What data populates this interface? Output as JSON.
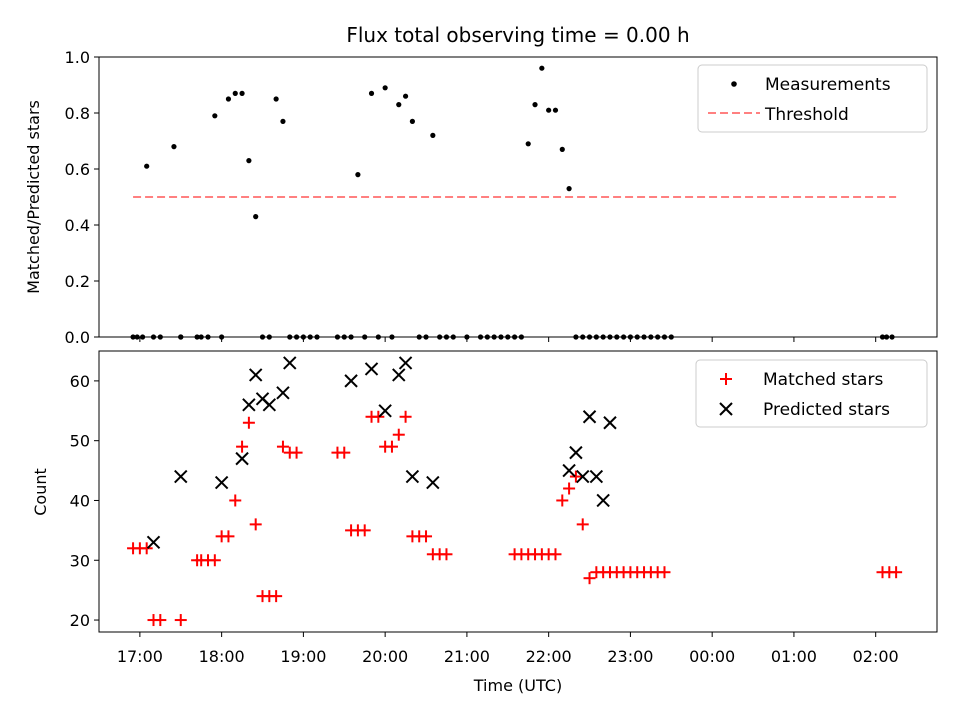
{
  "title": "Flux total observing time = 0.00 h",
  "colors": {
    "measurement": "#000000",
    "threshold": "#ff8080",
    "matched": "#ff0000",
    "predicted": "#000000"
  },
  "chart_data": [
    {
      "type": "scatter",
      "ylabel": "Matched/Predicted stars",
      "xlim": [
        "16:30",
        "02:45"
      ],
      "ylim": [
        0,
        1.0
      ],
      "yticks": [
        "0.0",
        "0.2",
        "0.4",
        "0.6",
        "0.8",
        "1.0"
      ],
      "legend": {
        "position": "top-right",
        "entries": [
          "Measurements",
          "Threshold"
        ]
      },
      "series": [
        {
          "name": "Measurements",
          "x": [
            "16:55",
            "16:58",
            "17:02",
            "17:05",
            "17:10",
            "17:15",
            "17:25",
            "17:30",
            "17:30",
            "17:42",
            "17:45",
            "17:50",
            "17:55",
            "18:00",
            "18:05",
            "18:10",
            "18:15",
            "18:20",
            "18:25",
            "18:30",
            "18:35",
            "18:40",
            "18:45",
            "18:50",
            "18:55",
            "19:00",
            "19:05",
            "19:10",
            "19:25",
            "19:30",
            "19:35",
            "19:40",
            "19:45",
            "19:50",
            "19:55",
            "20:00",
            "20:05",
            "20:10",
            "20:15",
            "20:20",
            "20:25",
            "20:30",
            "20:35",
            "20:40",
            "20:45",
            "20:50",
            "21:00",
            "21:10",
            "21:15",
            "21:20",
            "21:25",
            "21:30",
            "21:35",
            "21:40",
            "21:45",
            "21:50",
            "21:55",
            "22:00",
            "22:05",
            "22:10",
            "22:15",
            "22:20",
            "22:25",
            "22:30",
            "22:35",
            "22:40",
            "22:45",
            "22:50",
            "22:55",
            "23:00",
            "23:05",
            "23:10",
            "23:15",
            "23:20",
            "23:25",
            "23:30",
            "02:05",
            "02:08",
            "02:12"
          ],
          "y": [
            0,
            0,
            0,
            0.61,
            0,
            0,
            0.68,
            0,
            0,
            0,
            0,
            0,
            0.79,
            0,
            0.85,
            0.87,
            0.87,
            0.63,
            0.43,
            0,
            0,
            0.85,
            0.77,
            0,
            0,
            0,
            0,
            0,
            0,
            0,
            0,
            0.58,
            0,
            0.87,
            0,
            0.89,
            0,
            0.83,
            0.86,
            0.77,
            0,
            0,
            0.72,
            0,
            0,
            0,
            0,
            0,
            0,
            0,
            0,
            0,
            0,
            0,
            0.69,
            0.83,
            0.96,
            0.81,
            0.81,
            0.67,
            0.53,
            0,
            0,
            0,
            0,
            0,
            0,
            0,
            0,
            0,
            0,
            0,
            0,
            0,
            0,
            0,
            0,
            0,
            0
          ]
        },
        {
          "name": "Threshold",
          "x": [
            "16:55",
            "02:15"
          ],
          "y": [
            0.5,
            0.5
          ]
        }
      ]
    },
    {
      "type": "scatter",
      "xlabel": "Time (UTC)",
      "ylabel": "Count",
      "xlim": [
        "16:30",
        "02:45"
      ],
      "ylim": [
        18,
        65
      ],
      "yticks": [
        "20",
        "30",
        "40",
        "50",
        "60"
      ],
      "xticks": [
        "17:00",
        "18:00",
        "19:00",
        "20:00",
        "21:00",
        "22:00",
        "23:00",
        "00:00",
        "01:00",
        "02:00"
      ],
      "legend": {
        "position": "top-right",
        "entries": [
          "Matched stars",
          "Predicted stars"
        ]
      },
      "series": [
        {
          "name": "Matched stars",
          "x": [
            "16:55",
            "17:00",
            "17:05",
            "17:10",
            "17:15",
            "17:30",
            "17:42",
            "17:45",
            "17:50",
            "17:55",
            "18:00",
            "18:05",
            "18:10",
            "18:15",
            "18:20",
            "18:25",
            "18:30",
            "18:35",
            "18:40",
            "18:45",
            "18:50",
            "18:55",
            "19:25",
            "19:30",
            "19:35",
            "19:40",
            "19:45",
            "19:50",
            "19:55",
            "20:00",
            "20:05",
            "20:10",
            "20:15",
            "20:20",
            "20:25",
            "20:30",
            "20:35",
            "20:40",
            "20:45",
            "21:35",
            "21:40",
            "21:45",
            "21:50",
            "21:55",
            "22:00",
            "22:05",
            "22:10",
            "22:15",
            "22:20",
            "22:25",
            "22:30",
            "22:35",
            "22:40",
            "22:45",
            "22:50",
            "22:55",
            "23:00",
            "23:05",
            "23:10",
            "23:15",
            "23:20",
            "23:25",
            "02:05",
            "02:10",
            "02:15"
          ],
          "y": [
            32,
            32,
            32,
            20,
            20,
            20,
            30,
            30,
            30,
            30,
            34,
            34,
            40,
            49,
            53,
            36,
            24,
            24,
            24,
            49,
            48,
            48,
            48,
            48,
            35,
            35,
            35,
            54,
            54,
            49,
            49,
            51,
            54,
            34,
            34,
            34,
            31,
            31,
            31,
            31,
            31,
            31,
            31,
            31,
            31,
            31,
            40,
            42,
            44,
            36,
            27,
            28,
            28,
            28,
            28,
            28,
            28,
            28,
            28,
            28,
            28,
            28,
            28,
            28,
            28
          ]
        },
        {
          "name": "Predicted stars",
          "x": [
            "17:10",
            "17:30",
            "18:00",
            "18:15",
            "18:20",
            "18:25",
            "18:30",
            "18:35",
            "18:45",
            "18:50",
            "19:35",
            "19:50",
            "20:00",
            "20:10",
            "20:15",
            "20:20",
            "20:35",
            "22:15",
            "22:20",
            "22:25",
            "22:30",
            "22:35",
            "22:40",
            "22:45"
          ],
          "y": [
            33,
            44,
            43,
            47,
            56,
            61,
            57,
            56,
            58,
            63,
            60,
            62,
            55,
            61,
            63,
            44,
            43,
            45,
            48,
            44,
            54,
            44,
            40,
            53
          ]
        }
      ]
    }
  ]
}
